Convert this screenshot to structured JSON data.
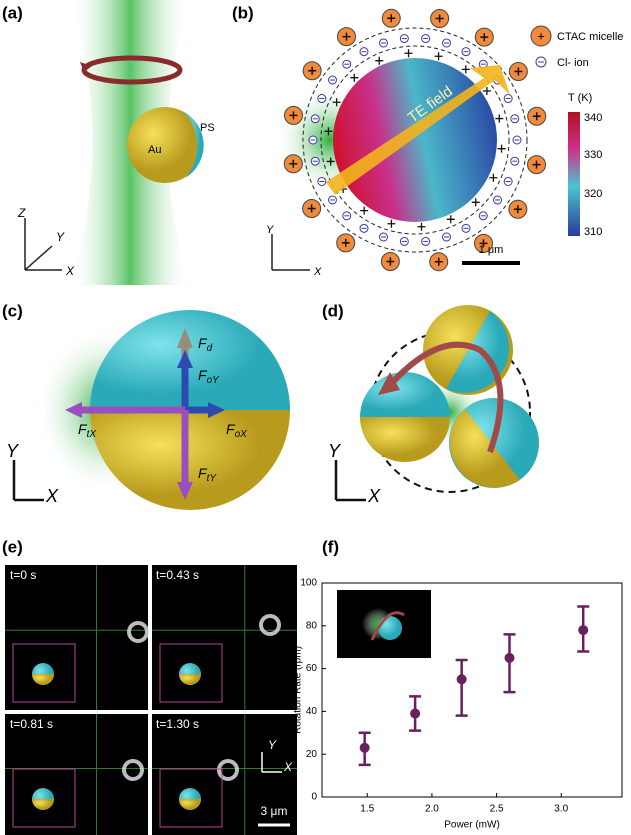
{
  "panels": {
    "a": {
      "label": "(a)",
      "core": "Au",
      "shell": "PS",
      "axes": [
        "Z",
        "Y",
        "X"
      ]
    },
    "b": {
      "label": "(b)",
      "legend": [
        "CTAC micelle",
        "Cl- ion"
      ],
      "field": "TE field",
      "colorbar_title": "T (K)",
      "colorbar_ticks": [
        "340",
        "330",
        "320",
        "310"
      ],
      "scale": "1 μm",
      "axes": [
        "Y",
        "X"
      ]
    },
    "c": {
      "label": "(c)",
      "forces": [
        {
          "symbol": "F",
          "subscript": "d"
        },
        {
          "symbol": "F",
          "subscript": "oY"
        },
        {
          "symbol": "F",
          "subscript": "tX"
        },
        {
          "symbol": "F",
          "subscript": "oX"
        },
        {
          "symbol": "F",
          "subscript": "tY"
        }
      ],
      "axes": [
        "Y",
        "X"
      ]
    },
    "d": {
      "label": "(d)",
      "axes": [
        "Y",
        "X"
      ]
    },
    "e": {
      "label": "(e)",
      "times": [
        "t=0 s",
        "t=0.43 s",
        "t=0.81 s",
        "t=1.30 s"
      ],
      "axes": [
        "Y",
        "X"
      ],
      "scale": "3 μm"
    }
  },
  "chart_data": {
    "type": "scatter",
    "title": "(f)",
    "x_label": "Power (mW)",
    "y_label": "Rotation Rate (rpm)",
    "x": [
      1.48,
      1.87,
      2.23,
      2.6,
      3.17
    ],
    "series": [
      {
        "color": "#6a1f5f",
        "values": [
          23,
          39,
          55,
          65,
          78
        ],
        "err_minus": [
          8,
          8,
          17,
          16,
          10
        ],
        "err_plus": [
          7,
          8,
          9,
          11,
          11
        ]
      }
    ],
    "xlim": [
      1.15,
      3.47
    ],
    "ylim": [
      0,
      100
    ],
    "xticks": [
      1.5,
      {
        "value": 2,
        "label": "2.0"
      },
      2.5,
      {
        "value": 3,
        "label": "3.0"
      }
    ],
    "yticks": [
      0,
      20,
      40,
      60,
      80,
      100
    ]
  }
}
